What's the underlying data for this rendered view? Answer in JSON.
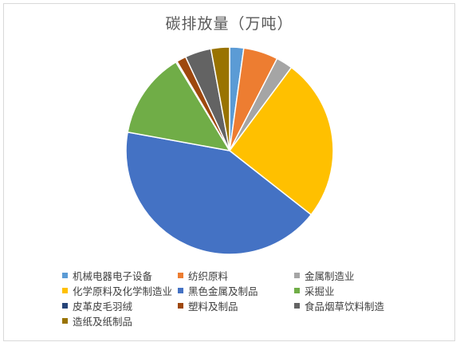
{
  "chart_data": {
    "type": "pie",
    "title": "碳排放量（万吨）",
    "categories": [
      "机械电器电子设备",
      "纺织原料",
      "金属制造业",
      "化学原料及化学制造业",
      "黑色金属及制品",
      "采掘业",
      "皮革皮毛羽绒",
      "塑料及制品",
      "食品烟草饮料制造",
      "造纸及纸制品"
    ],
    "values": [
      2.2,
      5.4,
      2.6,
      25.5,
      42.4,
      13.5,
      0.2,
      1.5,
      4.1,
      2.9
    ],
    "colors": [
      "#5B9BD5",
      "#ED7D31",
      "#A5A5A5",
      "#FFC000",
      "#4472C4",
      "#70AD47",
      "#264478",
      "#9E480E",
      "#636363",
      "#997300"
    ],
    "legend_position": "bottom"
  }
}
